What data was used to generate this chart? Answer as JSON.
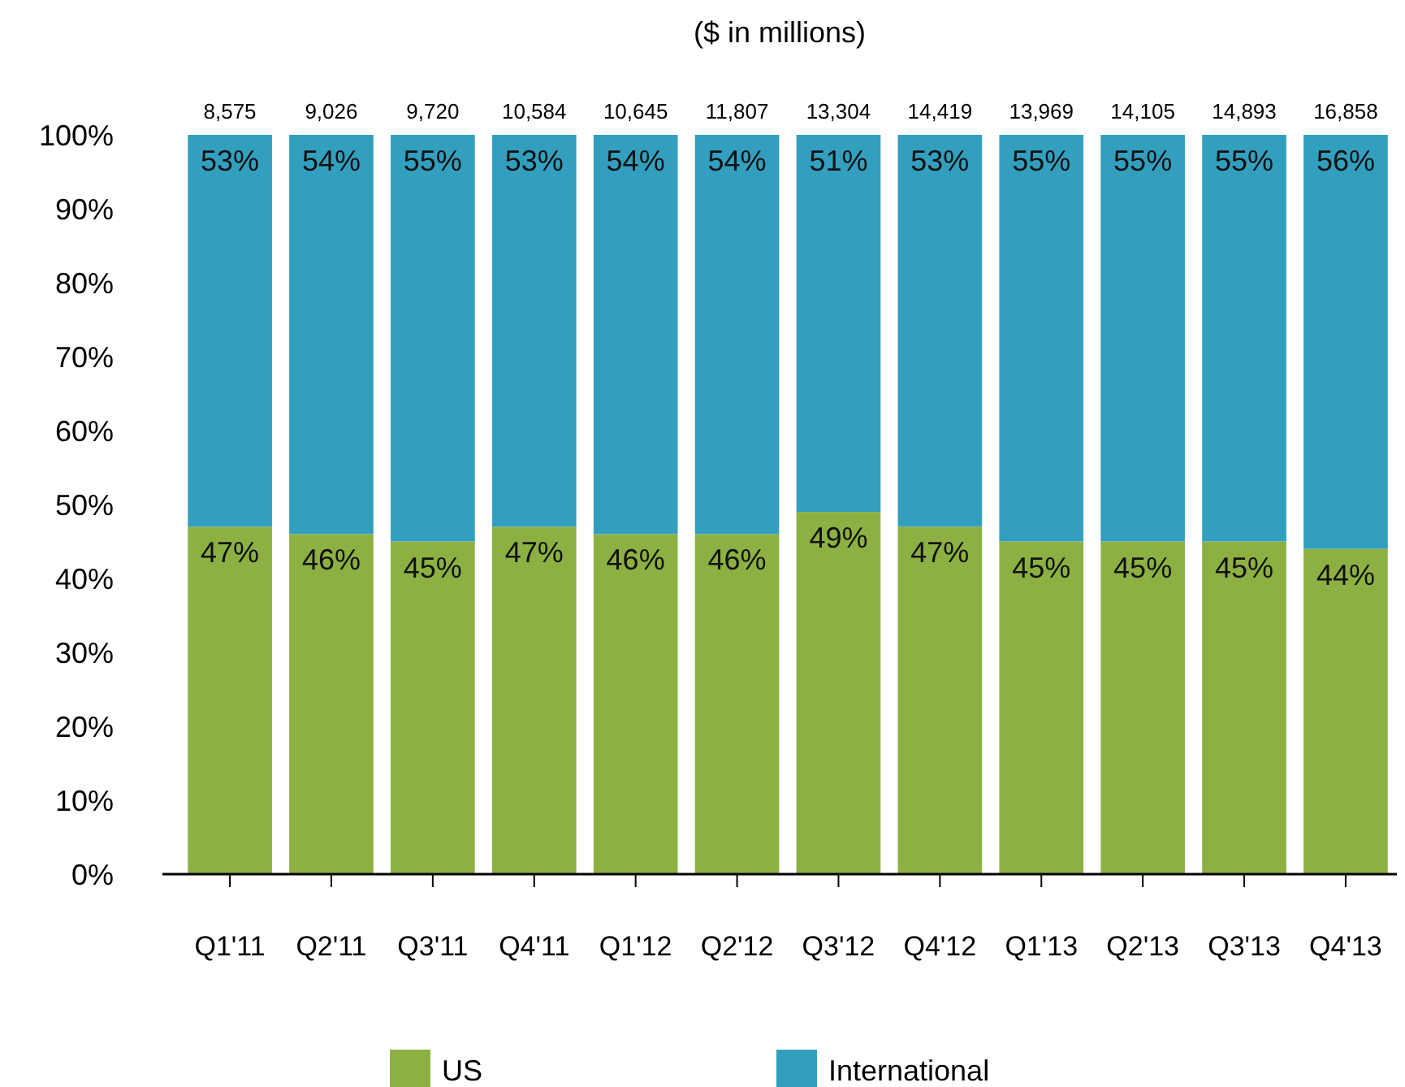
{
  "chart_data": {
    "type": "bar",
    "title": "($ in millions)",
    "stacked": true,
    "legend": "bottom",
    "grid": false,
    "categories": [
      "Q1'11",
      "Q2'11",
      "Q3'11",
      "Q4'11",
      "Q1'12",
      "Q2'12",
      "Q3'12",
      "Q4'12",
      "Q1'13",
      "Q2'13",
      "Q3'13",
      "Q4'13"
    ],
    "series": [
      {
        "name": "US",
        "color": "#8db043",
        "values": [
          47,
          46,
          45,
          47,
          46,
          46,
          49,
          47,
          45,
          45,
          45,
          44
        ],
        "value_labels": [
          "47%",
          "46%",
          "45%",
          "47%",
          "46%",
          "46%",
          "49%",
          "47%",
          "45%",
          "45%",
          "45%",
          "44%"
        ]
      },
      {
        "name": "International",
        "color": "#339fbf",
        "values": [
          53,
          54,
          55,
          53,
          54,
          54,
          51,
          53,
          55,
          55,
          55,
          56
        ],
        "value_labels": [
          "53%",
          "54%",
          "55%",
          "53%",
          "54%",
          "54%",
          "51%",
          "53%",
          "55%",
          "55%",
          "55%",
          "56%"
        ]
      }
    ],
    "annotations": [
      {
        "text": "8,575",
        "x": "Q1'11",
        "y": 100
      },
      {
        "text": "9,026",
        "x": "Q2'11",
        "y": 100
      },
      {
        "text": "9,720",
        "x": "Q3'11",
        "y": 100
      },
      {
        "text": "10,584",
        "x": "Q4'11",
        "y": 100
      },
      {
        "text": "10,645",
        "x": "Q1'12",
        "y": 100
      },
      {
        "text": "11,807",
        "x": "Q2'12",
        "y": 100
      },
      {
        "text": "13,304",
        "x": "Q3'12",
        "y": 100
      },
      {
        "text": "14,419",
        "x": "Q4'12",
        "y": 100
      },
      {
        "text": "13,969",
        "x": "Q1'13",
        "y": 100
      },
      {
        "text": "14,105",
        "x": "Q2'13",
        "y": 100
      },
      {
        "text": "14,893",
        "x": "Q3'13",
        "y": 100
      },
      {
        "text": "16,858",
        "x": "Q4'13",
        "y": 100
      }
    ],
    "ylim": [
      0,
      100
    ],
    "yticks": [
      {
        "value": 0,
        "label": "0%"
      },
      {
        "value": 10,
        "label": "10%"
      },
      {
        "value": 20,
        "label": "20%"
      },
      {
        "value": 30,
        "label": "30%"
      },
      {
        "value": 40,
        "label": "40%"
      },
      {
        "value": 50,
        "label": "50%"
      },
      {
        "value": 60,
        "label": "60%"
      },
      {
        "value": 70,
        "label": "70%"
      },
      {
        "value": 80,
        "label": "80%"
      },
      {
        "value": 90,
        "label": "90%"
      },
      {
        "value": 100,
        "label": "100%"
      }
    ]
  }
}
